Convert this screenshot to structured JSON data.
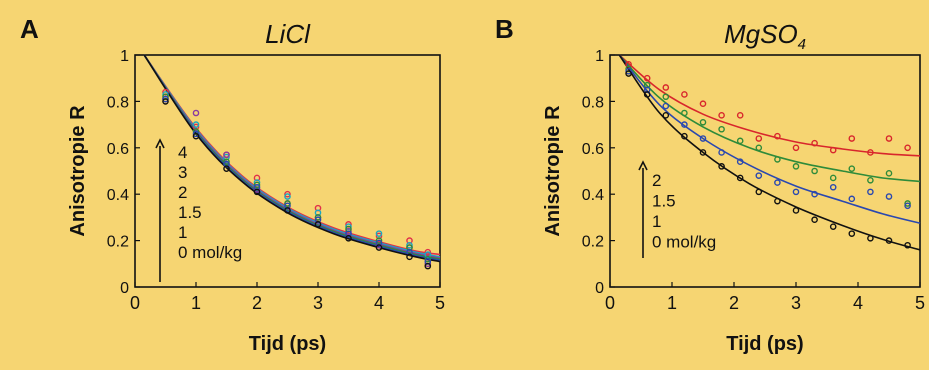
{
  "background_color": "#f6d572",
  "chart_data": [
    {
      "panel_letter": "A",
      "type": "scatter",
      "title": "LiCl",
      "title_style": "italic",
      "xlabel": "Tijd (ps)",
      "ylabel": "Anisotropie R",
      "xlim": [
        0,
        5
      ],
      "ylim": [
        0,
        1
      ],
      "x_ticks": [
        "0",
        "1",
        "2",
        "3",
        "4",
        "5"
      ],
      "y_ticks": [
        "0",
        "0.2",
        "0.4",
        "0.6",
        "0.8",
        "1"
      ],
      "grid": false,
      "legend_labels": [
        "4",
        "3",
        "2",
        "1.5",
        "1",
        "0 mol/kg"
      ],
      "legend_has_arrow": true,
      "series": [
        {
          "color": "#e0304a",
          "x": [
            0.5,
            1.0,
            1.5,
            2.0,
            2.5,
            3.0,
            3.5,
            4.0,
            4.5,
            4.8
          ],
          "y": [
            0.84,
            0.69,
            0.57,
            0.47,
            0.4,
            0.34,
            0.27,
            0.22,
            0.2,
            0.15
          ],
          "fit_y": [
            1.0,
            0.685,
            0.48,
            0.345,
            0.255,
            0.195,
            0.155,
            0.14
          ]
        },
        {
          "color": "#19a7c4",
          "x": [
            0.5,
            1.0,
            1.5,
            2.0,
            2.5,
            3.0,
            3.5,
            4.0,
            4.5,
            4.8
          ],
          "y": [
            0.83,
            0.7,
            0.56,
            0.45,
            0.39,
            0.32,
            0.26,
            0.23,
            0.18,
            0.14
          ],
          "fit_y": [
            1.0,
            0.68,
            0.475,
            0.34,
            0.25,
            0.19,
            0.15,
            0.13
          ]
        },
        {
          "color": "#8a3aa0",
          "x": [
            0.5,
            1.0,
            1.5,
            2.0,
            2.5,
            3.0,
            3.5,
            4.0,
            4.5,
            4.8
          ],
          "y": [
            0.81,
            0.75,
            0.57,
            0.42,
            0.36,
            0.3,
            0.24,
            0.18,
            0.17,
            0.1
          ],
          "fit_y": [
            1.0,
            0.675,
            0.47,
            0.335,
            0.245,
            0.185,
            0.145,
            0.125
          ]
        },
        {
          "color": "#2e8b3a",
          "x": [
            0.5,
            1.0,
            1.5,
            2.0,
            2.5,
            3.0,
            3.5,
            4.0,
            4.5,
            4.8
          ],
          "y": [
            0.82,
            0.67,
            0.54,
            0.44,
            0.36,
            0.3,
            0.25,
            0.2,
            0.17,
            0.12
          ],
          "fit_y": [
            1.0,
            0.67,
            0.465,
            0.33,
            0.24,
            0.18,
            0.14,
            0.12
          ]
        },
        {
          "color": "#2a48b0",
          "x": [
            0.5,
            1.0,
            1.5,
            2.0,
            2.5,
            3.0,
            3.5,
            4.0,
            4.5,
            4.8
          ],
          "y": [
            0.81,
            0.66,
            0.53,
            0.43,
            0.35,
            0.29,
            0.23,
            0.19,
            0.15,
            0.11
          ],
          "fit_y": [
            1.0,
            0.665,
            0.46,
            0.325,
            0.235,
            0.175,
            0.135,
            0.115
          ]
        },
        {
          "color": "#111111",
          "x": [
            0.5,
            1.0,
            1.5,
            2.0,
            2.5,
            3.0,
            3.5,
            4.0,
            4.5,
            4.8
          ],
          "y": [
            0.8,
            0.65,
            0.51,
            0.41,
            0.33,
            0.27,
            0.21,
            0.17,
            0.13,
            0.09
          ],
          "fit_y": [
            1.0,
            0.66,
            0.455,
            0.32,
            0.23,
            0.17,
            0.13,
            0.11
          ]
        }
      ],
      "fit_x": [
        0.15,
        1.0,
        1.75,
        2.5,
        3.25,
        4.0,
        4.6,
        5.0
      ]
    },
    {
      "panel_letter": "B",
      "type": "scatter",
      "title": "MgSO",
      "title_subscript": "4",
      "title_style": "italic",
      "xlabel": "Tijd (ps)",
      "ylabel": "Anisotropie R",
      "xlim": [
        0,
        5
      ],
      "ylim": [
        0,
        1
      ],
      "x_ticks": [
        "0",
        "1",
        "2",
        "3",
        "4",
        "5"
      ],
      "y_ticks": [
        "0",
        "0.2",
        "0.4",
        "0.6",
        "0.8",
        "1"
      ],
      "grid": false,
      "legend_labels": [
        "2",
        "1.5",
        "1",
        "0 mol/kg"
      ],
      "legend_has_arrow": true,
      "series": [
        {
          "color": "#d8262c",
          "x": [
            0.3,
            0.6,
            0.9,
            1.2,
            1.5,
            1.8,
            2.1,
            2.4,
            2.7,
            3.0,
            3.3,
            3.6,
            3.9,
            4.2,
            4.5,
            4.8
          ],
          "y": [
            0.96,
            0.9,
            0.86,
            0.83,
            0.79,
            0.74,
            0.74,
            0.64,
            0.65,
            0.6,
            0.62,
            0.59,
            0.64,
            0.58,
            0.64,
            0.6
          ],
          "fit_y": [
            1.0,
            0.85,
            0.745,
            0.675,
            0.625,
            0.595,
            0.575,
            0.565
          ]
        },
        {
          "color": "#2e8b3a",
          "x": [
            0.3,
            0.6,
            0.9,
            1.2,
            1.5,
            1.8,
            2.1,
            2.4,
            2.7,
            3.0,
            3.3,
            3.6,
            3.9,
            4.2,
            4.5,
            4.8
          ],
          "y": [
            0.94,
            0.87,
            0.82,
            0.75,
            0.71,
            0.68,
            0.63,
            0.6,
            0.55,
            0.52,
            0.5,
            0.47,
            0.51,
            0.46,
            0.49,
            0.36
          ],
          "fit_y": [
            1.0,
            0.815,
            0.69,
            0.6,
            0.54,
            0.5,
            0.47,
            0.455
          ]
        },
        {
          "color": "#2a48b0",
          "x": [
            0.3,
            0.6,
            0.9,
            1.2,
            1.5,
            1.8,
            2.1,
            2.4,
            2.7,
            3.0,
            3.3,
            3.6,
            3.9,
            4.2,
            4.5,
            4.8
          ],
          "y": [
            0.93,
            0.85,
            0.78,
            0.7,
            0.64,
            0.58,
            0.54,
            0.48,
            0.45,
            0.41,
            0.4,
            0.43,
            0.38,
            0.41,
            0.39,
            0.35
          ],
          "fit_y": [
            1.0,
            0.785,
            0.64,
            0.525,
            0.435,
            0.37,
            0.315,
            0.275
          ]
        },
        {
          "color": "#111111",
          "x": [
            0.3,
            0.6,
            0.9,
            1.2,
            1.5,
            1.8,
            2.1,
            2.4,
            2.7,
            3.0,
            3.3,
            3.6,
            3.9,
            4.2,
            4.5,
            4.8
          ],
          "y": [
            0.92,
            0.83,
            0.74,
            0.65,
            0.58,
            0.52,
            0.47,
            0.41,
            0.37,
            0.33,
            0.29,
            0.26,
            0.23,
            0.21,
            0.2,
            0.18
          ],
          "fit_y": [
            1.0,
            0.75,
            0.58,
            0.445,
            0.345,
            0.265,
            0.205,
            0.16
          ]
        }
      ],
      "fit_x": [
        0.15,
        0.8,
        1.5,
        2.25,
        3.0,
        3.75,
        4.4,
        5.0
      ]
    }
  ]
}
